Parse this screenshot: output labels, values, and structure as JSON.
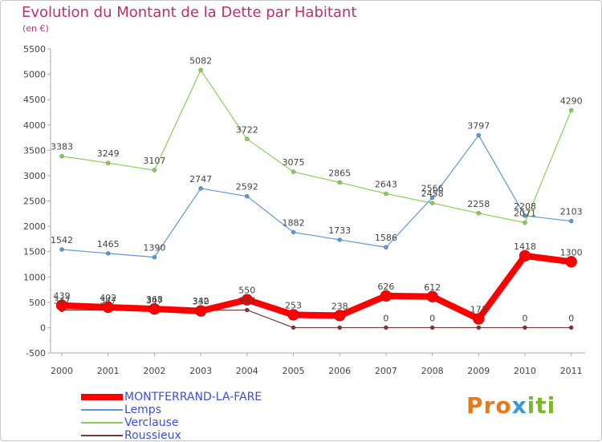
{
  "title": "Evolution du Montant de la Dette par Habitant",
  "subtitle": "(en €)",
  "logo": "Proxiti",
  "chart_data": {
    "type": "line",
    "categories": [
      "2000",
      "2001",
      "2002",
      "2003",
      "2004",
      "2005",
      "2006",
      "2007",
      "2008",
      "2009",
      "2010",
      "2011"
    ],
    "ylim": [
      -500,
      5500
    ],
    "yticks": [
      -500,
      0,
      500,
      1000,
      1500,
      2000,
      2500,
      3000,
      3500,
      4000,
      4500,
      5000,
      5500
    ],
    "grid": false,
    "legend_placement": "bottom-left",
    "series": [
      {
        "name": "Verclause",
        "color": "#88d058",
        "width": 1.2,
        "marker": 2.5,
        "values": [
          3383,
          3249,
          3107,
          5082,
          3722,
          3075,
          2865,
          2643,
          2458,
          2258,
          2071,
          4290
        ],
        "labels": [
          "3383",
          "3249",
          "3107",
          "5082",
          "3722",
          "3075",
          "2865",
          "2643",
          "2458",
          "2258",
          "2071",
          "4290"
        ]
      },
      {
        "name": "Lemps",
        "color": "#5b9ad8",
        "width": 1.2,
        "marker": 2.5,
        "values": [
          1542,
          1465,
          1390,
          2747,
          2592,
          1882,
          1733,
          1586,
          2566,
          3797,
          2208,
          2103
        ],
        "labels": [
          "1542",
          "1465",
          "1390",
          "2747",
          "2592",
          "1882",
          "1733",
          "1586",
          "2566",
          "3797",
          "2208",
          "2103"
        ]
      },
      {
        "name": "Roussieux",
        "color": "#7a3838",
        "width": 1.2,
        "marker": 2.5,
        "values": [
          347,
          347,
          347,
          342,
          347,
          0,
          0,
          0,
          0,
          0,
          0,
          0
        ],
        "labels": [
          "347",
          "347",
          "347",
          "342",
          "347",
          "",
          "",
          "0",
          "0",
          "",
          "0",
          "0"
        ]
      },
      {
        "name": "MONTFERRAND-LA-FARE",
        "color": "#ff0000",
        "width": 8,
        "marker": 7,
        "values": [
          439,
          402,
          368,
          330,
          550,
          253,
          238,
          626,
          612,
          173,
          1418,
          1300
        ],
        "labels": [
          "439",
          "402",
          "368",
          "330",
          "550",
          "253",
          "238",
          "626",
          "612",
          "173",
          "1418",
          "1300"
        ]
      }
    ],
    "legend_order": [
      "MONTFERRAND-LA-FARE",
      "Lemps",
      "Verclause",
      "Roussieux"
    ]
  }
}
